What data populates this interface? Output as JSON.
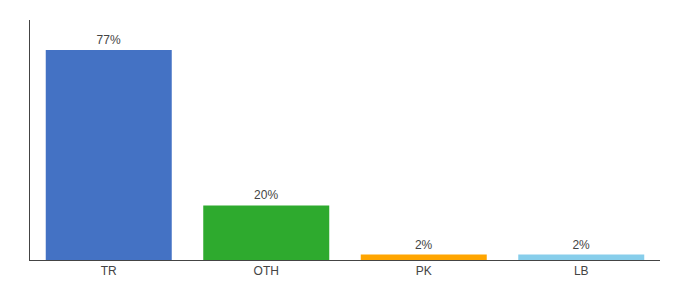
{
  "chart_data": {
    "type": "bar",
    "categories": [
      "TR",
      "OTH",
      "PK",
      "LB"
    ],
    "values": [
      77,
      20,
      2,
      2
    ],
    "value_labels": [
      "77%",
      "20%",
      "2%",
      "2%"
    ],
    "colors": [
      "#4472C4",
      "#2EAA2E",
      "#FFA500",
      "#87CEEB"
    ],
    "ylim": [
      0,
      88
    ],
    "data_labels": true,
    "tick_labels": "x",
    "grid": false
  }
}
